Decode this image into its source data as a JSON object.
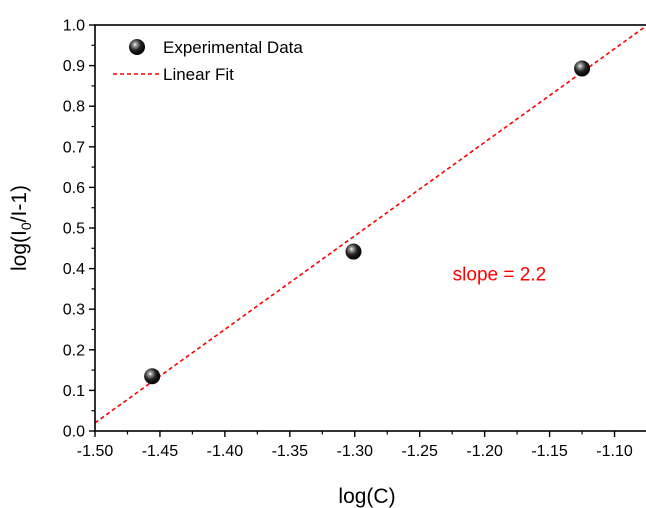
{
  "chart_data": {
    "type": "scatter",
    "xlabel": "log(C)",
    "ylabel_parts": [
      "log(I",
      "0",
      "/I-1)"
    ],
    "xlim": [
      -1.5,
      -1.075
    ],
    "ylim": [
      0.0,
      1.0
    ],
    "x_ticks": [
      -1.5,
      -1.45,
      -1.4,
      -1.35,
      -1.3,
      -1.25,
      -1.2,
      -1.15,
      -1.1
    ],
    "x_tick_labels": [
      "-1.50",
      "-1.45",
      "-1.40",
      "-1.35",
      "-1.30",
      "-1.25",
      "-1.20",
      "-1.15",
      "-1.10"
    ],
    "y_ticks": [
      0.0,
      0.1,
      0.2,
      0.3,
      0.4,
      0.5,
      0.6,
      0.7,
      0.8,
      0.9,
      1.0
    ],
    "y_tick_labels": [
      "0.0",
      "0.1",
      "0.2",
      "0.3",
      "0.4",
      "0.5",
      "0.6",
      "0.7",
      "0.8",
      "0.9",
      "1.0"
    ],
    "series": [
      {
        "name": "Experimental Data",
        "kind": "scatter",
        "marker": "sphere",
        "color": "#000000",
        "x": [
          -1.456,
          -1.301,
          -1.125
        ],
        "y": [
          0.135,
          0.442,
          0.893
        ]
      },
      {
        "name": "Linear Fit",
        "kind": "line",
        "style": "dashed",
        "color": "#ff0000",
        "x": [
          -1.5,
          -1.075
        ],
        "y": [
          0.02,
          0.999
        ]
      }
    ],
    "legend_position": "top-left",
    "annotations": [
      {
        "text": "slope = 2.2",
        "x": -1.22,
        "y": 0.39,
        "color": "#ff0000"
      }
    ],
    "grid": false
  }
}
